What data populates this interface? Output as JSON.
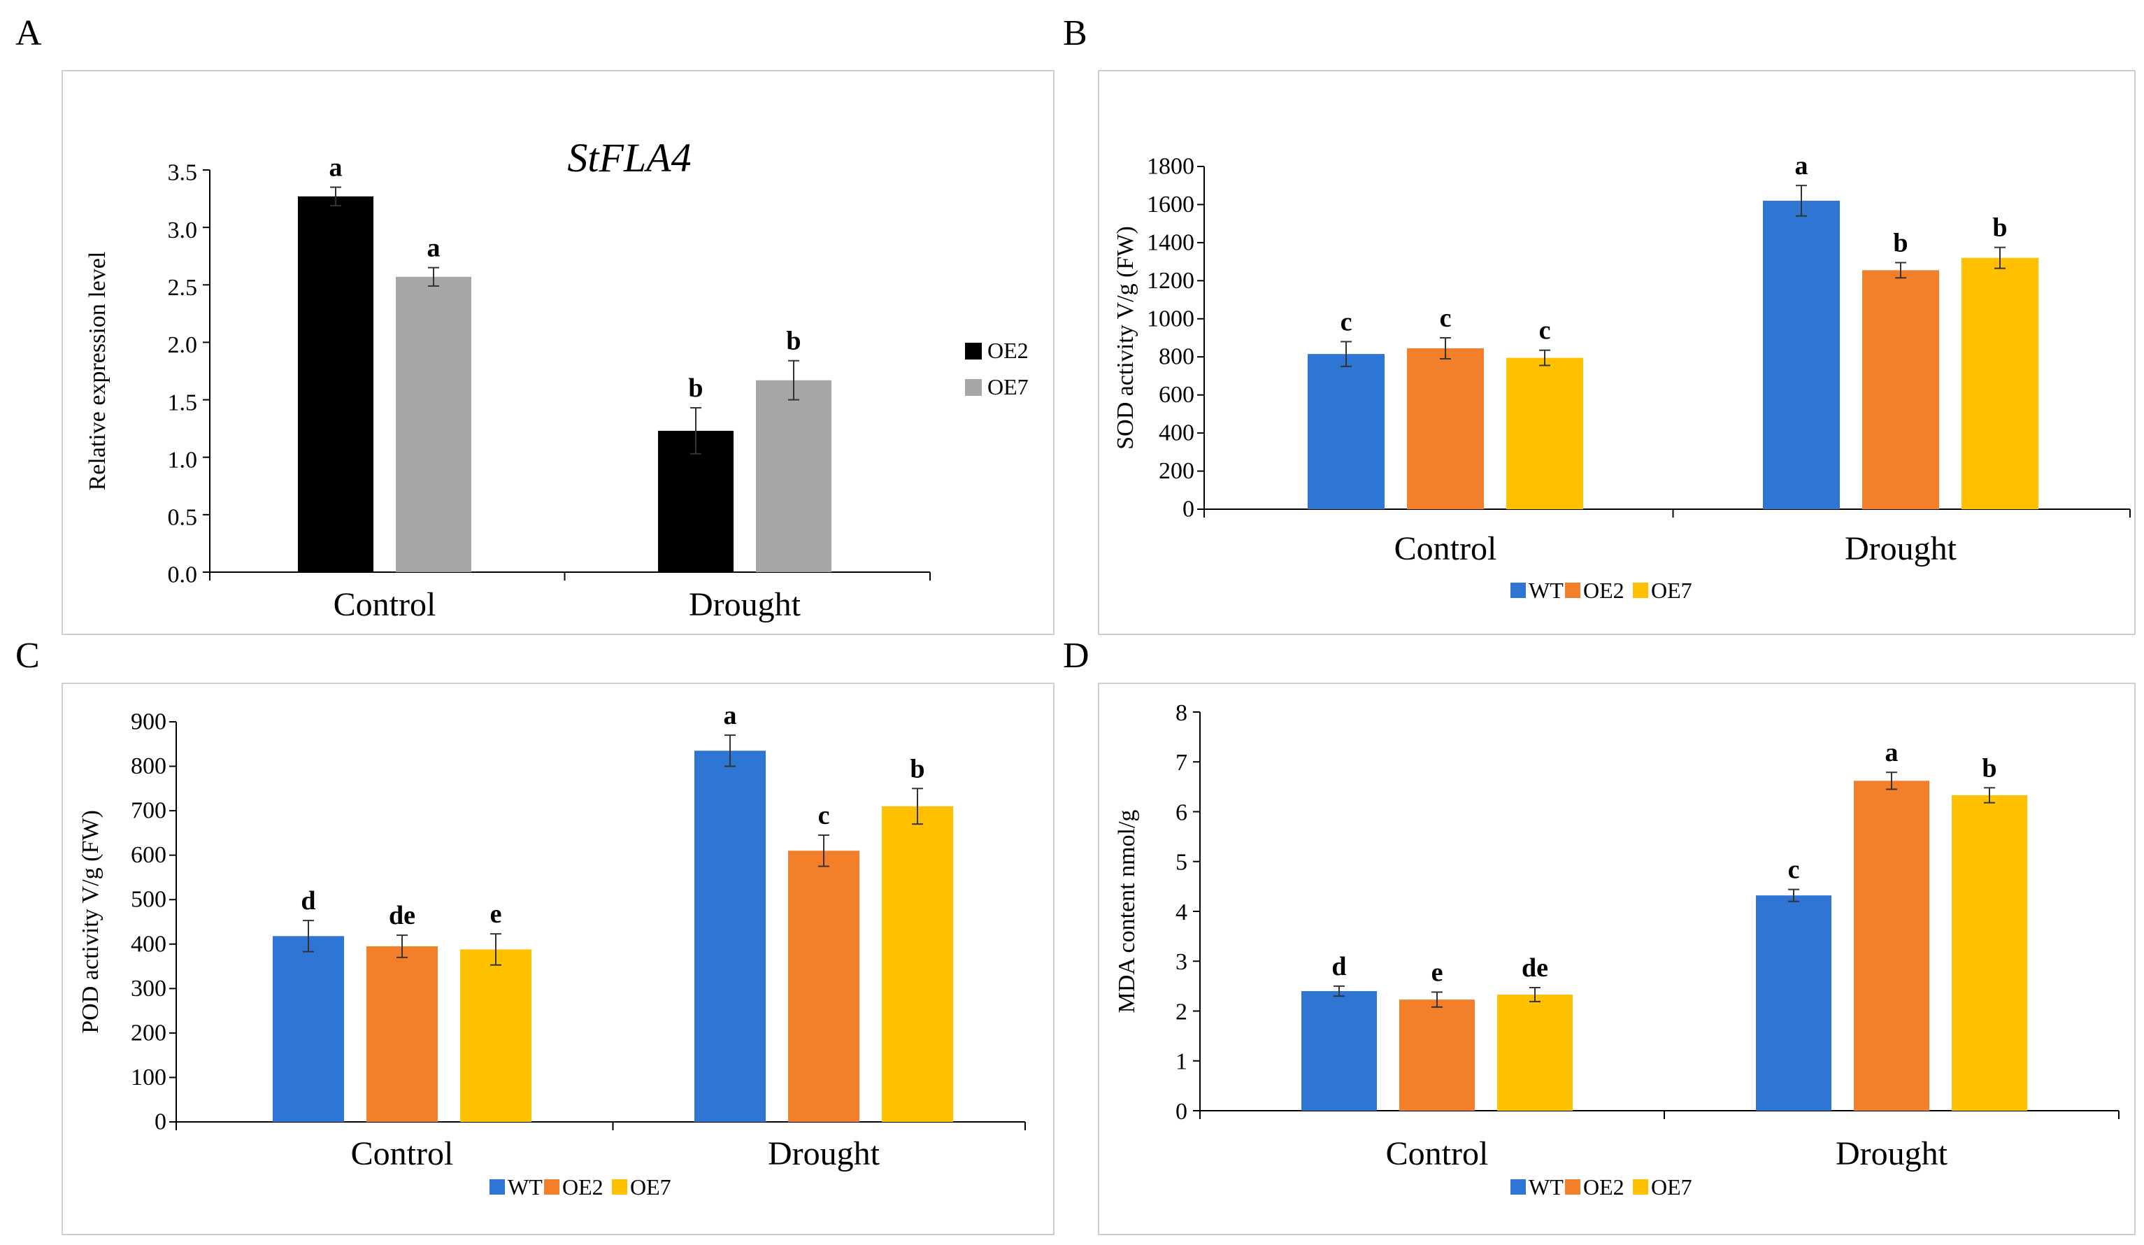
{
  "colors": {
    "WT": "#2e75d4",
    "OE2": "#f47f2a",
    "OE7": "#ffc000",
    "OE2_A": "#000000",
    "OE7_A": "#a6a6a6"
  },
  "chart_data": [
    {
      "panel": "A",
      "type": "bar",
      "title": "StFLA4",
      "ylabel": "Relative expression level",
      "xlabel": "",
      "categories": [
        "Control",
        "Drought"
      ],
      "ylim": [
        0,
        3.5
      ],
      "yticks": [
        "0.0",
        "0.5",
        "1.0",
        "1.5",
        "2.0",
        "2.5",
        "3.0",
        "3.5"
      ],
      "legend_position": "right",
      "series": [
        {
          "name": "OE2",
          "color": "#000000",
          "values": [
            3.27,
            1.23
          ],
          "errors": [
            0.08,
            0.2
          ],
          "sig": [
            "a",
            "b"
          ]
        },
        {
          "name": "OE7",
          "color": "#a6a6a6",
          "values": [
            2.57,
            1.67
          ],
          "errors": [
            0.08,
            0.17
          ],
          "sig": [
            "a",
            "b"
          ]
        }
      ]
    },
    {
      "panel": "B",
      "type": "bar",
      "title": "",
      "ylabel": "SOD activity V/g (FW)",
      "xlabel": "",
      "categories": [
        "Control",
        "Drought"
      ],
      "ylim": [
        0,
        1800
      ],
      "yticks": [
        "0",
        "200",
        "400",
        "600",
        "800",
        "1000",
        "1200",
        "1400",
        "1600",
        "1800"
      ],
      "legend_position": "bottom",
      "series": [
        {
          "name": "WT",
          "color": "#2e75d4",
          "values": [
            815,
            1620
          ],
          "errors": [
            65,
            80
          ],
          "sig": [
            "c",
            "a"
          ]
        },
        {
          "name": "OE2",
          "color": "#f47f2a",
          "values": [
            845,
            1255
          ],
          "errors": [
            55,
            40
          ],
          "sig": [
            "c",
            "b"
          ]
        },
        {
          "name": "OE7",
          "color": "#ffc000",
          "values": [
            795,
            1320
          ],
          "errors": [
            40,
            55
          ],
          "sig": [
            "c",
            "b"
          ]
        }
      ]
    },
    {
      "panel": "C",
      "type": "bar",
      "title": "",
      "ylabel": "POD activity V/g (FW)",
      "xlabel": "",
      "categories": [
        "Control",
        "Drought"
      ],
      "ylim": [
        0,
        900
      ],
      "yticks": [
        "0",
        "100",
        "200",
        "300",
        "400",
        "500",
        "600",
        "700",
        "800",
        "900"
      ],
      "legend_position": "bottom",
      "series": [
        {
          "name": "WT",
          "color": "#2e75d4",
          "values": [
            418,
            835
          ],
          "errors": [
            35,
            35
          ],
          "sig": [
            "d",
            "a"
          ]
        },
        {
          "name": "OE2",
          "color": "#f47f2a",
          "values": [
            395,
            610
          ],
          "errors": [
            25,
            35
          ],
          "sig": [
            "de",
            "c"
          ]
        },
        {
          "name": "OE7",
          "color": "#ffc000",
          "values": [
            388,
            710
          ],
          "errors": [
            35,
            40
          ],
          "sig": [
            "e",
            "b"
          ]
        }
      ]
    },
    {
      "panel": "D",
      "type": "bar",
      "title": "",
      "ylabel": "MDA content nmol/g",
      "xlabel": "",
      "categories": [
        "Control",
        "Drought"
      ],
      "ylim": [
        0,
        8
      ],
      "yticks": [
        "0",
        "1",
        "2",
        "3",
        "4",
        "5",
        "6",
        "7",
        "8"
      ],
      "legend_position": "bottom",
      "series": [
        {
          "name": "WT",
          "color": "#2e75d4",
          "values": [
            2.4,
            4.32
          ],
          "errors": [
            0.1,
            0.12
          ],
          "sig": [
            "d",
            "c"
          ]
        },
        {
          "name": "OE2",
          "color": "#f47f2a",
          "values": [
            2.23,
            6.62
          ],
          "errors": [
            0.15,
            0.17
          ],
          "sig": [
            "e",
            "a"
          ]
        },
        {
          "name": "OE7",
          "color": "#ffc000",
          "values": [
            2.33,
            6.33
          ],
          "errors": [
            0.14,
            0.15
          ],
          "sig": [
            "de",
            "b"
          ]
        }
      ]
    }
  ]
}
